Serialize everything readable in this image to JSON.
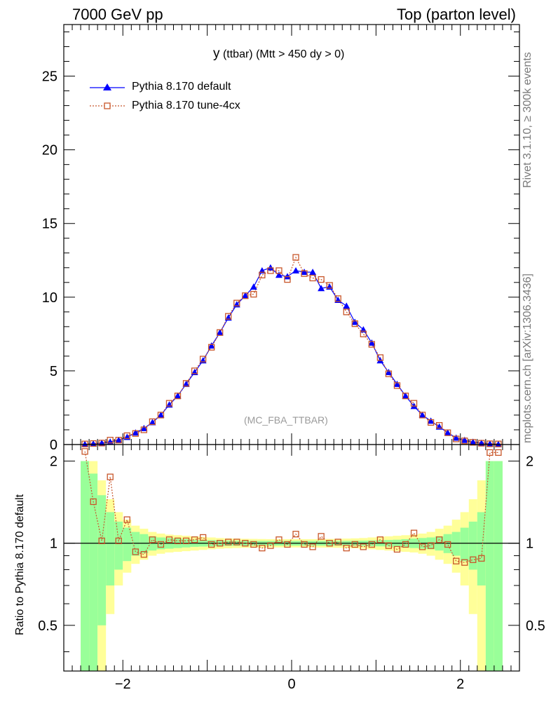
{
  "header": {
    "left": "7000 GeV pp",
    "right": "Top (parton level)"
  },
  "side_text": {
    "rivet": "Rivet 3.1.10, ≥ 300k events",
    "mcplots": "mcplots.cern.ch [arXiv:1306.3436]"
  },
  "plot_title": {
    "main": "y",
    "sub": "(ttbar) (Mtt > 450 dy > 0)"
  },
  "watermark": "(MC_FBA_TTBAR)",
  "ratio_ylabel": "Ratio to Pythia 8.170 default",
  "chart_data": [
    {
      "type": "line",
      "panel": "main",
      "xlim": [
        -2.7,
        2.7
      ],
      "ylim": [
        0,
        28.5
      ],
      "yticks": [
        0,
        5,
        10,
        15,
        20,
        25
      ],
      "ytick_labels": [
        "0",
        "5",
        "10",
        "15",
        "20",
        "25"
      ],
      "legend_position": "top-left",
      "x": [
        -2.45,
        -2.35,
        -2.25,
        -2.15,
        -2.05,
        -1.95,
        -1.85,
        -1.75,
        -1.65,
        -1.55,
        -1.45,
        -1.35,
        -1.25,
        -1.15,
        -1.05,
        -0.95,
        -0.85,
        -0.75,
        -0.65,
        -0.55,
        -0.45,
        -0.35,
        -0.25,
        -0.15,
        -0.05,
        0.05,
        0.15,
        0.25,
        0.35,
        0.45,
        0.55,
        0.65,
        0.75,
        0.85,
        0.95,
        1.05,
        1.15,
        1.25,
        1.35,
        1.45,
        1.55,
        1.65,
        1.75,
        1.85,
        1.95,
        2.05,
        2.15,
        2.25,
        2.35,
        2.45
      ],
      "series": [
        {
          "name": "Pythia 8.170 default",
          "color": "#0000ff",
          "marker": "triangle",
          "values": [
            0.02,
            0.05,
            0.1,
            0.18,
            0.3,
            0.5,
            0.8,
            1.1,
            1.5,
            2.0,
            2.7,
            3.3,
            4.1,
            4.9,
            5.7,
            6.7,
            7.6,
            8.6,
            9.5,
            10.1,
            10.7,
            11.8,
            12.0,
            11.5,
            11.4,
            11.8,
            11.7,
            11.7,
            10.6,
            10.7,
            9.8,
            9.4,
            8.3,
            7.8,
            6.9,
            5.7,
            4.9,
            4.1,
            3.3,
            2.6,
            2.0,
            1.6,
            1.2,
            0.8,
            0.45,
            0.3,
            0.17,
            0.1,
            0.05,
            0.02
          ]
        },
        {
          "name": "Pythia 8.170 tune-4cx",
          "color": "#c8562a",
          "marker": "open-square",
          "values": [
            0.04,
            0.07,
            0.1,
            0.3,
            0.3,
            0.6,
            0.75,
            1.0,
            1.55,
            2.0,
            2.8,
            3.3,
            4.15,
            5.0,
            5.8,
            6.6,
            7.6,
            8.7,
            9.6,
            10.1,
            10.2,
            11.5,
            11.8,
            11.8,
            11.2,
            12.7,
            11.6,
            11.3,
            11.2,
            10.8,
            9.9,
            9.0,
            8.2,
            7.5,
            6.8,
            5.9,
            4.8,
            4.0,
            3.3,
            2.8,
            2.0,
            1.5,
            1.3,
            0.8,
            0.38,
            0.25,
            0.15,
            0.09,
            0.05,
            0.04
          ]
        }
      ]
    },
    {
      "type": "line",
      "panel": "ratio",
      "xlim": [
        -2.7,
        2.7
      ],
      "ylim": [
        0.34,
        2.3
      ],
      "yticks": [
        0.5,
        1,
        2
      ],
      "ytick_labels": [
        "0.5",
        "1",
        "2"
      ],
      "xticks": [
        -2,
        0,
        2
      ],
      "xtick_labels": [
        "−2",
        "0",
        "2"
      ],
      "x": [
        -2.45,
        -2.35,
        -2.25,
        -2.15,
        -2.05,
        -1.95,
        -1.85,
        -1.75,
        -1.65,
        -1.55,
        -1.45,
        -1.35,
        -1.25,
        -1.15,
        -1.05,
        -0.95,
        -0.85,
        -0.75,
        -0.65,
        -0.55,
        -0.45,
        -0.35,
        -0.25,
        -0.15,
        -0.05,
        0.05,
        0.15,
        0.25,
        0.35,
        0.45,
        0.55,
        0.65,
        0.75,
        0.85,
        0.95,
        1.05,
        1.15,
        1.25,
        1.35,
        1.45,
        1.55,
        1.65,
        1.75,
        1.85,
        1.95,
        2.05,
        2.15,
        2.25,
        2.35,
        2.45
      ],
      "series": [
        {
          "name": "Pythia 8.170 default",
          "color": "#000000",
          "values": [
            1,
            1,
            1,
            1,
            1,
            1,
            1,
            1,
            1,
            1,
            1,
            1,
            1,
            1,
            1,
            1,
            1,
            1,
            1,
            1,
            1,
            1,
            1,
            1,
            1,
            1,
            1,
            1,
            1,
            1,
            1,
            1,
            1,
            1,
            1,
            1,
            1,
            1,
            1,
            1,
            1,
            1,
            1,
            1,
            1,
            1,
            1,
            1,
            1,
            1
          ]
        },
        {
          "name": "Pythia 8.170 tune-4cx",
          "color": "#c8562a",
          "values": [
            2.17,
            1.42,
            1.02,
            1.75,
            1.02,
            1.22,
            0.93,
            0.91,
            1.03,
            0.99,
            1.03,
            1.02,
            1.02,
            1.03,
            1.05,
            0.99,
            1.0,
            1.01,
            1.01,
            1.0,
            0.99,
            0.96,
            0.98,
            1.03,
            0.99,
            1.08,
            0.99,
            0.97,
            1.06,
            1.0,
            1.01,
            0.96,
            0.99,
            0.97,
            0.99,
            1.03,
            0.98,
            0.95,
            0.99,
            1.09,
            0.97,
            0.98,
            1.03,
            0.99,
            0.86,
            0.85,
            0.87,
            0.88,
            2.15,
            2.15
          ]
        }
      ],
      "bands": {
        "green_halfwidth": [
          1.0,
          0.8,
          0.5,
          0.3,
          0.2,
          0.14,
          0.1,
          0.08,
          0.06,
          0.05,
          0.045,
          0.04,
          0.035,
          0.03,
          0.028,
          0.026,
          0.024,
          0.022,
          0.021,
          0.02,
          0.02,
          0.02,
          0.02,
          0.02,
          0.02,
          0.02,
          0.02,
          0.02,
          0.02,
          0.02,
          0.02,
          0.02,
          0.021,
          0.022,
          0.024,
          0.026,
          0.028,
          0.03,
          0.035,
          0.04,
          0.045,
          0.05,
          0.06,
          0.08,
          0.1,
          0.14,
          0.2,
          0.3,
          1.0,
          1.0
        ],
        "yellow_halfwidth": [
          1.0,
          1.0,
          0.7,
          0.45,
          0.3,
          0.22,
          0.16,
          0.13,
          0.1,
          0.085,
          0.075,
          0.07,
          0.065,
          0.06,
          0.055,
          0.05,
          0.045,
          0.042,
          0.04,
          0.038,
          0.037,
          0.036,
          0.035,
          0.035,
          0.035,
          0.035,
          0.035,
          0.035,
          0.036,
          0.037,
          0.038,
          0.04,
          0.042,
          0.045,
          0.05,
          0.055,
          0.06,
          0.065,
          0.07,
          0.075,
          0.085,
          0.1,
          0.13,
          0.16,
          0.22,
          0.3,
          0.45,
          0.7,
          1.0,
          1.0
        ],
        "green_color": "#99ff99",
        "yellow_color": "#ffff99"
      }
    }
  ]
}
